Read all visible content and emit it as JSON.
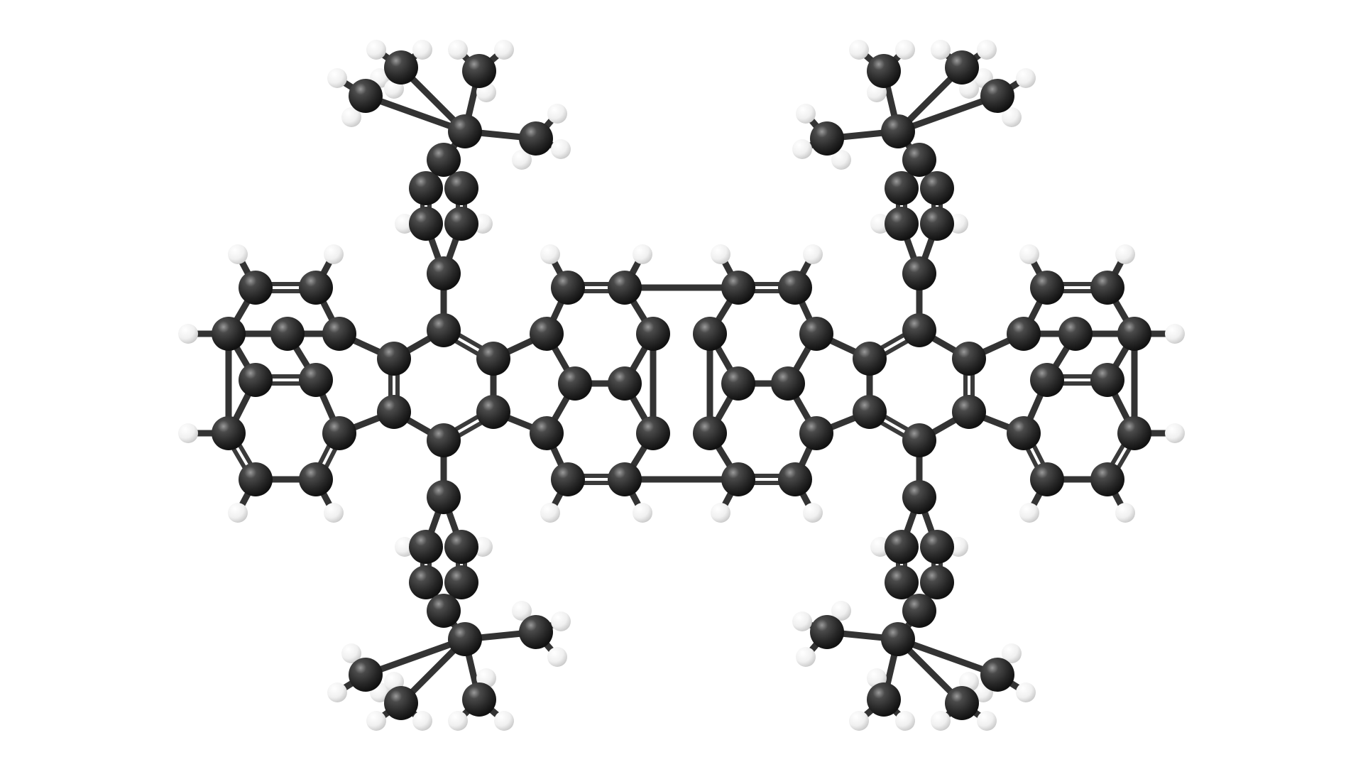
{
  "scene": {
    "background": "#ffffff",
    "carbon_color": "#2e2e2e",
    "hydrogen_color": "#f2f2f2",
    "bond_color": "#3a3a3a",
    "atom_types": [
      "C",
      "H"
    ]
  }
}
